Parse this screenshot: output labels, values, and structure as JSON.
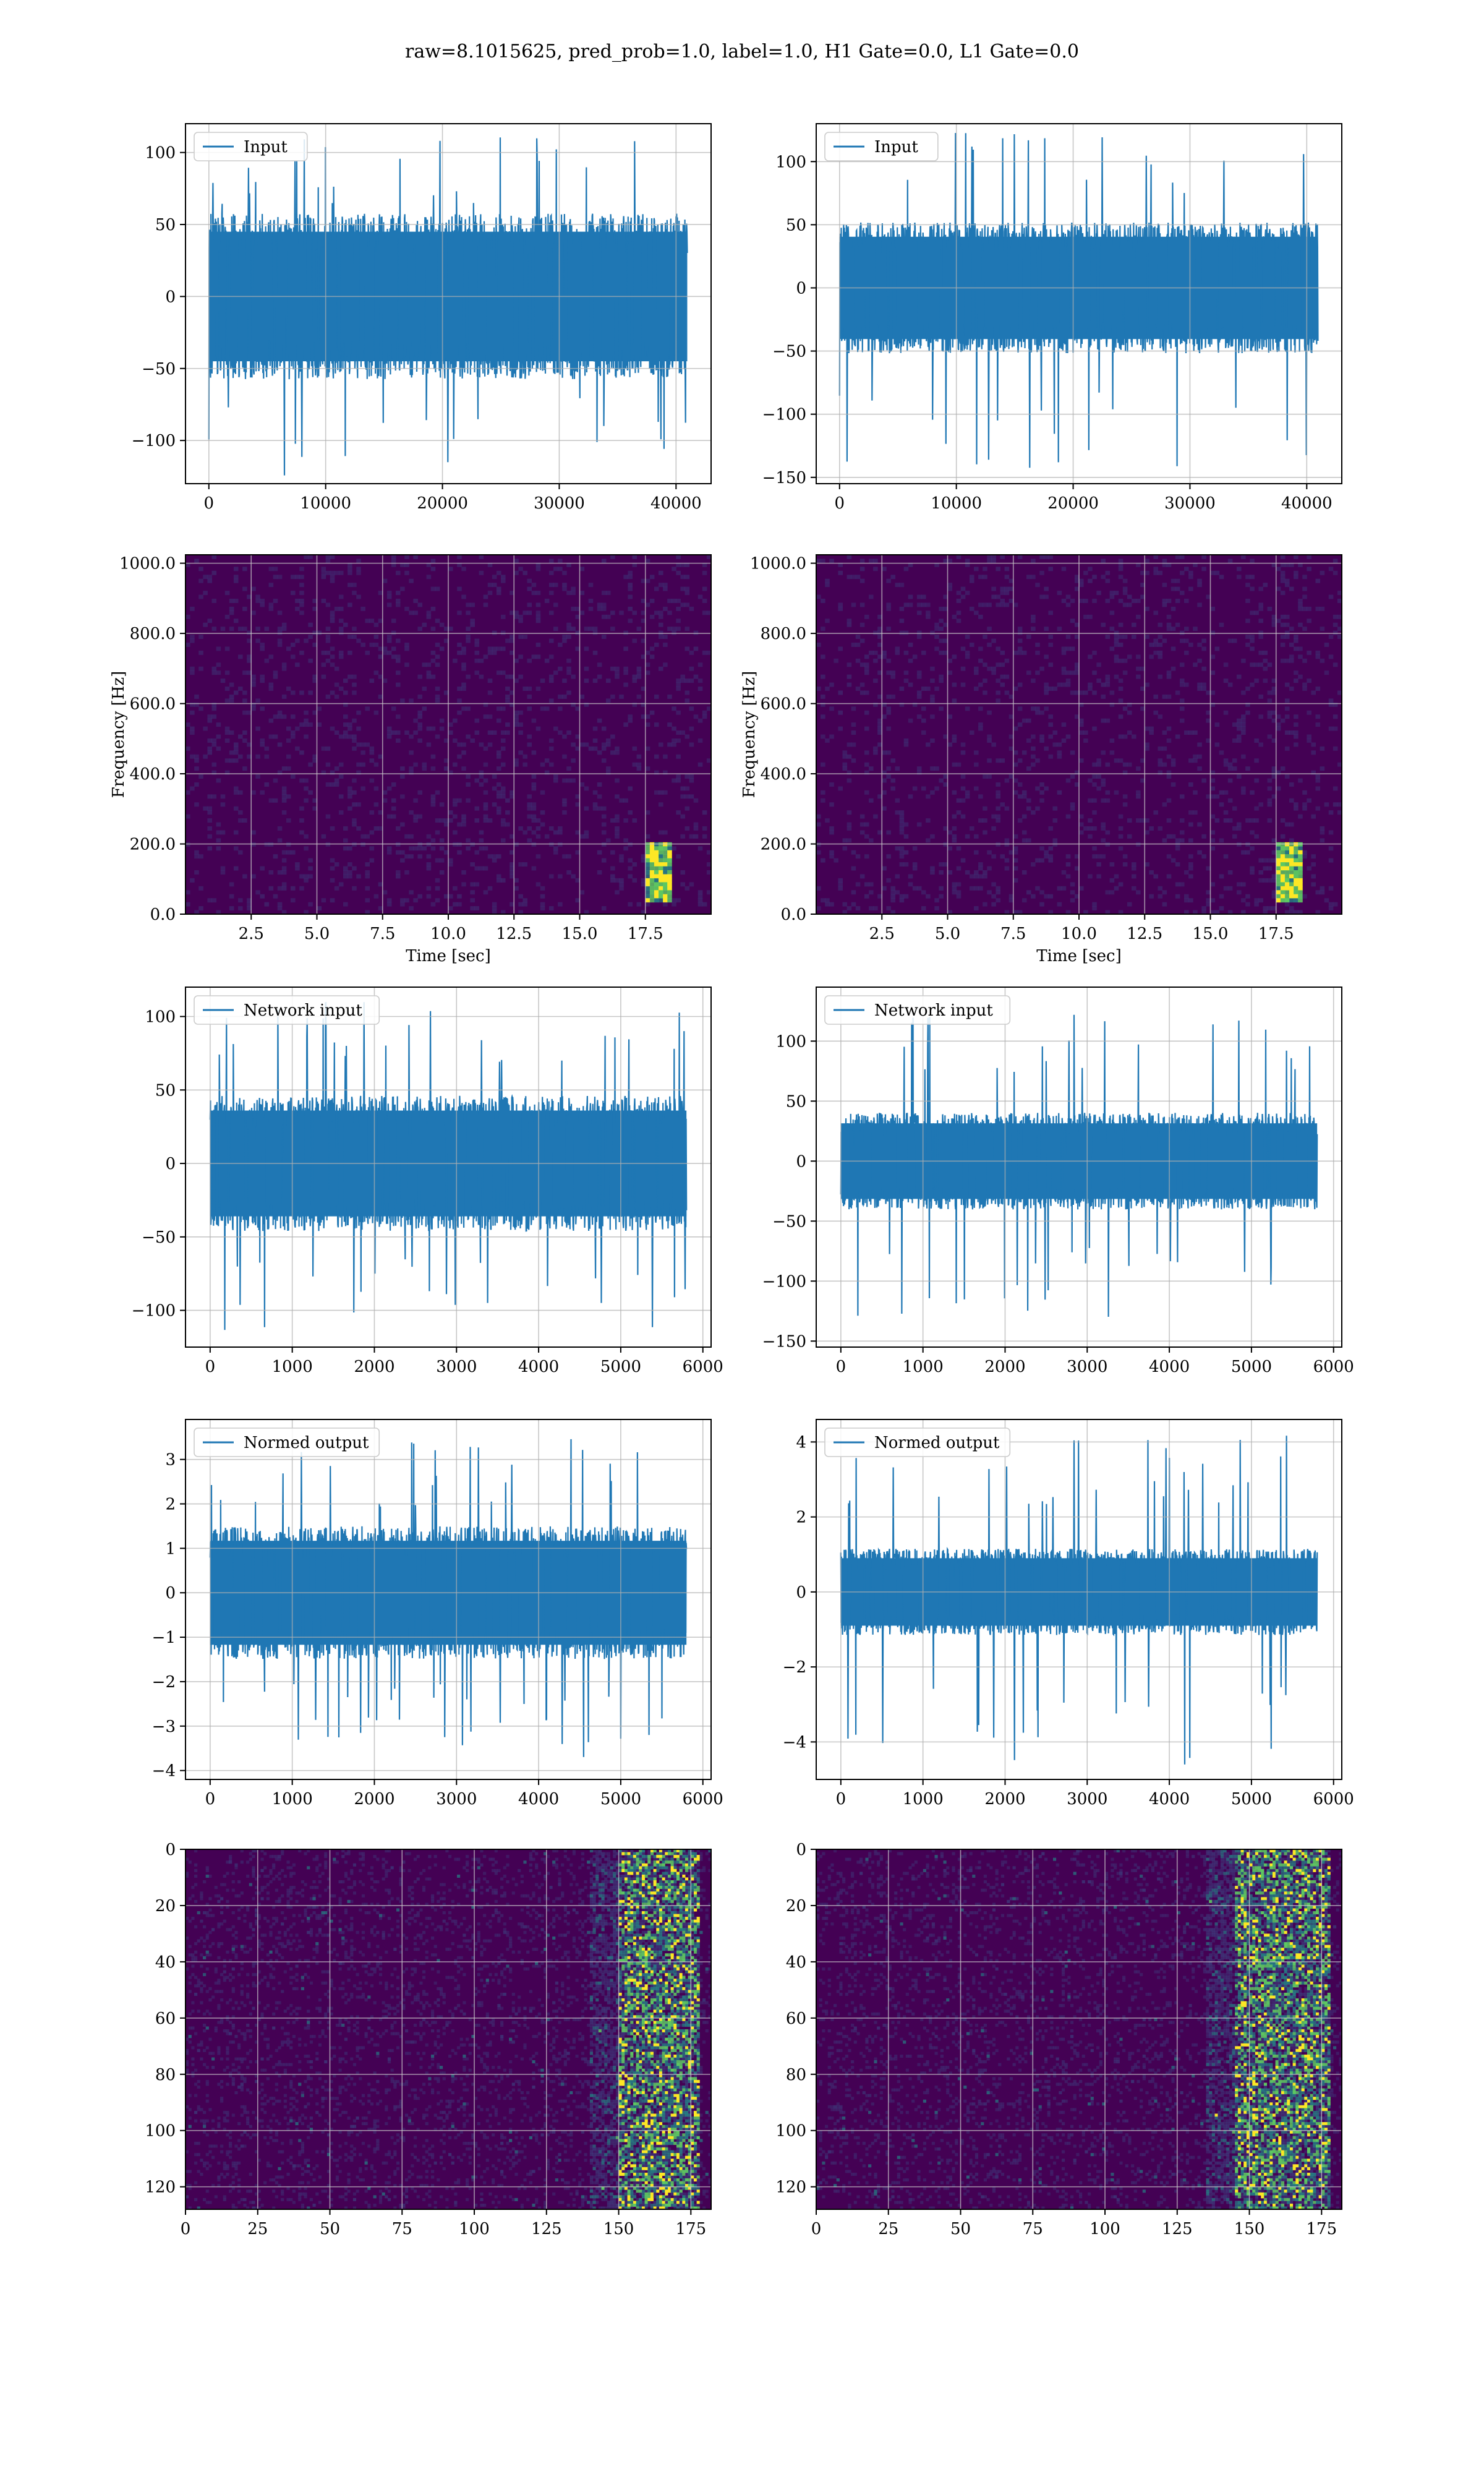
{
  "suptitle": "raw=8.1015625, pred_prob=1.0, label=1.0, H1 Gate=0.0, L1 Gate=0.0",
  "colors": {
    "line": "#1f77b4",
    "grid": "#b0b0b0",
    "viridis_dark": "#440154",
    "viridis_mid": "#3b528b",
    "viridis_teal": "#21918c",
    "viridis_green": "#5ec962",
    "viridis_yellow": "#fde725"
  },
  "chart_data": [
    {
      "id": "input-h1",
      "type": "line",
      "legend": "Input",
      "xlim": [
        -2000,
        43000
      ],
      "ylim": [
        -130,
        120
      ],
      "xticks": [
        0,
        10000,
        20000,
        30000,
        40000
      ],
      "yticks": [
        -100,
        -50,
        0,
        50,
        100
      ],
      "series": [
        {
          "name": "Input",
          "length": 40960,
          "envelope": {
            "core": [
              -50,
              50
            ],
            "peaks": [
              -125,
              115
            ]
          }
        }
      ]
    },
    {
      "id": "input-l1",
      "type": "line",
      "legend": "Input",
      "xlim": [
        -2000,
        43000
      ],
      "ylim": [
        -155,
        130
      ],
      "xticks": [
        0,
        10000,
        20000,
        30000,
        40000
      ],
      "yticks": [
        -150,
        -100,
        -50,
        0,
        50,
        100
      ],
      "series": [
        {
          "name": "Input",
          "length": 40960,
          "envelope": {
            "core": [
              -45,
              45
            ],
            "peaks": [
              -145,
              125
            ]
          }
        }
      ]
    },
    {
      "id": "spectrogram-h1",
      "type": "heatmap",
      "xlabel": "Time [sec]",
      "ylabel": "Frequency [Hz]",
      "xlim": [
        0,
        20
      ],
      "ylim": [
        0,
        1024
      ],
      "xticks": [
        2.5,
        5.0,
        7.5,
        10.0,
        12.5,
        15.0,
        17.5
      ],
      "yticks": [
        0,
        200,
        400,
        600,
        800,
        1000
      ],
      "chirp": {
        "time": [
          17.5,
          18.5
        ],
        "freq": [
          30,
          200
        ]
      }
    },
    {
      "id": "spectrogram-l1",
      "type": "heatmap",
      "xlabel": "Time [sec]",
      "ylabel": "Frequency [Hz]",
      "xlim": [
        0,
        20
      ],
      "ylim": [
        0,
        1024
      ],
      "xticks": [
        2.5,
        5.0,
        7.5,
        10.0,
        12.5,
        15.0,
        17.5
      ],
      "yticks": [
        0,
        200,
        400,
        600,
        800,
        1000
      ],
      "chirp": {
        "time": [
          17.5,
          18.5
        ],
        "freq": [
          30,
          200
        ]
      }
    },
    {
      "id": "network-input-h1",
      "type": "line",
      "legend": "Network input",
      "xlim": [
        -300,
        6100
      ],
      "ylim": [
        -125,
        120
      ],
      "xticks": [
        0,
        1000,
        2000,
        3000,
        4000,
        5000,
        6000
      ],
      "yticks": [
        -100,
        -50,
        0,
        50,
        100
      ],
      "series": [
        {
          "name": "Network input",
          "length": 5800,
          "envelope": {
            "core": [
              -40,
              40
            ],
            "peaks": [
              -115,
              110
            ]
          }
        }
      ]
    },
    {
      "id": "network-input-l1",
      "type": "line",
      "legend": "Network input",
      "xlim": [
        -300,
        6100
      ],
      "ylim": [
        -155,
        145
      ],
      "xticks": [
        0,
        1000,
        2000,
        3000,
        4000,
        5000,
        6000
      ],
      "yticks": [
        -150,
        -100,
        -50,
        0,
        50,
        100
      ],
      "series": [
        {
          "name": "Network input",
          "length": 5800,
          "envelope": {
            "core": [
              -35,
              35
            ],
            "peaks": [
              -130,
              125
            ]
          }
        }
      ]
    },
    {
      "id": "normed-output-h1",
      "type": "line",
      "legend": "Normed output",
      "xlim": [
        -300,
        6100
      ],
      "ylim": [
        -4.2,
        3.9
      ],
      "xticks": [
        0,
        1000,
        2000,
        3000,
        4000,
        5000,
        6000
      ],
      "yticks": [
        -4,
        -3,
        -2,
        -1,
        0,
        1,
        2,
        3
      ],
      "series": [
        {
          "name": "Normed output",
          "length": 5800,
          "envelope": {
            "core": [
              -1.3,
              1.3
            ],
            "peaks": [
              -3.7,
              3.5
            ]
          }
        }
      ]
    },
    {
      "id": "normed-output-l1",
      "type": "line",
      "legend": "Normed output",
      "xlim": [
        -300,
        6100
      ],
      "ylim": [
        -5.0,
        4.6
      ],
      "xticks": [
        0,
        1000,
        2000,
        3000,
        4000,
        5000,
        6000
      ],
      "yticks": [
        -4,
        -2,
        0,
        2,
        4
      ],
      "series": [
        {
          "name": "Normed output",
          "length": 5800,
          "envelope": {
            "core": [
              -1.0,
              1.0
            ],
            "peaks": [
              -4.6,
              4.2
            ]
          }
        }
      ]
    },
    {
      "id": "feature-map-h1",
      "type": "heatmap",
      "xlim": [
        0,
        182
      ],
      "ylim": [
        128,
        0
      ],
      "xticks": [
        0,
        25,
        50,
        75,
        100,
        125,
        150,
        175
      ],
      "yticks": [
        0,
        20,
        40,
        60,
        80,
        100,
        120
      ],
      "hotspot": {
        "x": [
          150,
          178
        ]
      }
    },
    {
      "id": "feature-map-l1",
      "type": "heatmap",
      "xlim": [
        0,
        182
      ],
      "ylim": [
        128,
        0
      ],
      "xticks": [
        0,
        25,
        50,
        75,
        100,
        125,
        150,
        175
      ],
      "yticks": [
        0,
        20,
        40,
        60,
        80,
        100,
        120
      ],
      "hotspot": {
        "x": [
          145,
          178
        ]
      }
    }
  ]
}
